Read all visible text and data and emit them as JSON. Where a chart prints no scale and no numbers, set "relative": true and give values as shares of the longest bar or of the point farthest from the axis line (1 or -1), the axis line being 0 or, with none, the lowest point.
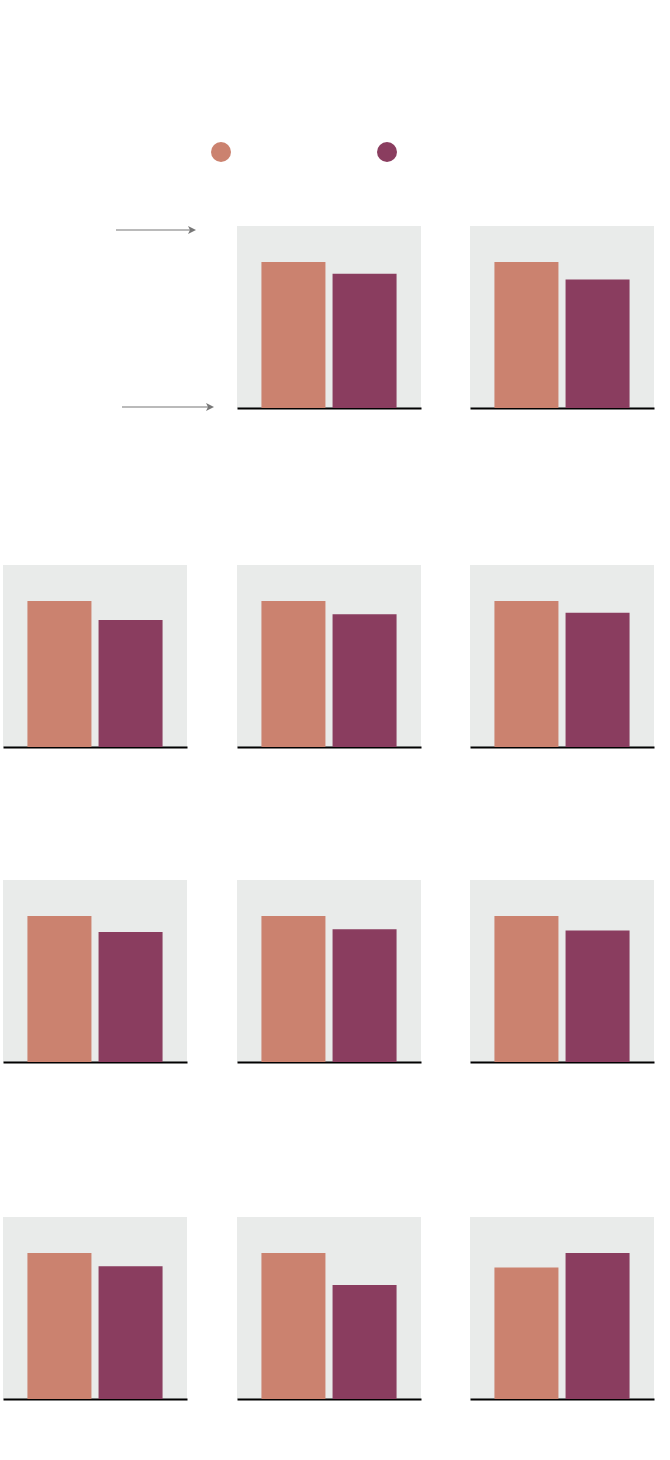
{
  "chart_data": [
    {
      "type": "bar",
      "relative": true,
      "categories": [
        null
      ],
      "series": [
        {
          "color": "#cb826f",
          "values": [
            1
          ]
        },
        {
          "color": "#8a3d5f",
          "values": [
            0.92
          ]
        }
      ]
    },
    {
      "type": "bar",
      "relative": true,
      "categories": [
        null
      ],
      "series": [
        {
          "color": "#cb826f",
          "values": [
            1
          ]
        },
        {
          "color": "#8a3d5f",
          "values": [
            0.88
          ]
        }
      ]
    },
    {
      "type": "bar",
      "relative": true,
      "categories": [
        null
      ],
      "series": [
        {
          "color": "#cb826f",
          "values": [
            1
          ]
        },
        {
          "color": "#8a3d5f",
          "values": [
            0.87
          ]
        }
      ]
    },
    {
      "type": "bar",
      "relative": true,
      "categories": [
        null
      ],
      "series": [
        {
          "color": "#cb826f",
          "values": [
            1
          ]
        },
        {
          "color": "#8a3d5f",
          "values": [
            0.91
          ]
        }
      ]
    },
    {
      "type": "bar",
      "relative": true,
      "categories": [
        null
      ],
      "series": [
        {
          "color": "#cb826f",
          "values": [
            1
          ]
        },
        {
          "color": "#8a3d5f",
          "values": [
            0.92
          ]
        }
      ]
    },
    {
      "type": "bar",
      "relative": true,
      "categories": [
        null
      ],
      "series": [
        {
          "color": "#cb826f",
          "values": [
            1
          ]
        },
        {
          "color": "#8a3d5f",
          "values": [
            0.89
          ]
        }
      ]
    },
    {
      "type": "bar",
      "relative": true,
      "categories": [
        null
      ],
      "series": [
        {
          "color": "#cb826f",
          "values": [
            1
          ]
        },
        {
          "color": "#8a3d5f",
          "values": [
            0.91
          ]
        }
      ]
    },
    {
      "type": "bar",
      "relative": true,
      "categories": [
        null
      ],
      "series": [
        {
          "color": "#cb826f",
          "values": [
            1
          ]
        },
        {
          "color": "#8a3d5f",
          "values": [
            0.9
          ]
        }
      ]
    },
    {
      "type": "bar",
      "relative": true,
      "categories": [
        null
      ],
      "series": [
        {
          "color": "#cb826f",
          "values": [
            1
          ]
        },
        {
          "color": "#8a3d5f",
          "values": [
            0.91
          ]
        }
      ]
    },
    {
      "type": "bar",
      "relative": true,
      "categories": [
        null
      ],
      "series": [
        {
          "color": "#cb826f",
          "values": [
            1
          ]
        },
        {
          "color": "#8a3d5f",
          "values": [
            0.78
          ]
        }
      ]
    },
    {
      "type": "bar",
      "relative": true,
      "categories": [
        null
      ],
      "series": [
        {
          "color": "#cb826f",
          "values": [
            0.9
          ]
        },
        {
          "color": "#8a3d5f",
          "values": [
            1
          ]
        }
      ]
    }
  ]
}
